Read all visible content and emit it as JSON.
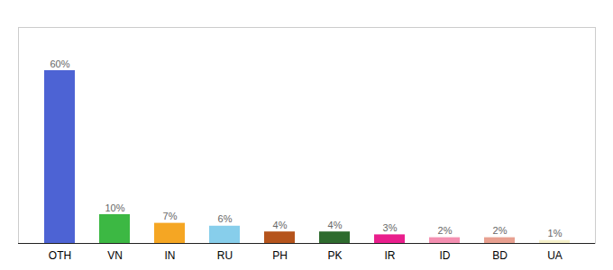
{
  "chart_data": {
    "type": "bar",
    "categories": [
      "OTH",
      "VN",
      "IN",
      "RU",
      "PH",
      "PK",
      "IR",
      "ID",
      "BD",
      "UA"
    ],
    "values": [
      60,
      10,
      7,
      6,
      4,
      4,
      3,
      2,
      2,
      1
    ],
    "value_labels": [
      "60%",
      "10%",
      "7%",
      "6%",
      "4%",
      "4%",
      "3%",
      "2%",
      "2%",
      "1%"
    ],
    "colors": [
      "#4d63d4",
      "#3cb843",
      "#f5a623",
      "#87ceeb",
      "#b5541c",
      "#2e6b2e",
      "#e91e8c",
      "#f48fb1",
      "#e8a090",
      "#f5f0c8"
    ],
    "ylim": [
      0,
      75
    ],
    "yticks": [],
    "grid": false,
    "data_labels": true,
    "tick_labels": "x"
  }
}
